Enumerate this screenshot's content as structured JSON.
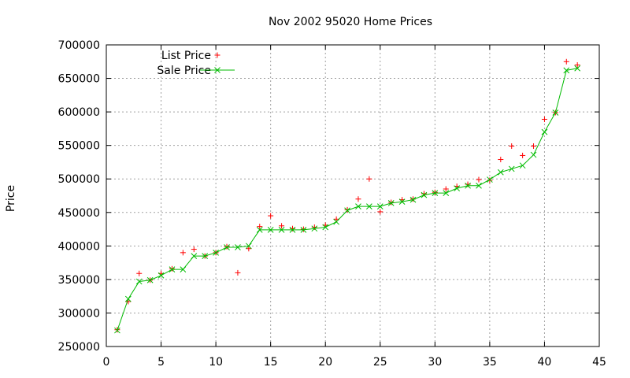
{
  "chart_data": {
    "type": "scatter",
    "title": "Nov 2002 95020 Home Prices",
    "xlabel": "",
    "ylabel": "Price",
    "xlim": [
      0,
      45
    ],
    "ylim": [
      250000,
      700000
    ],
    "x_ticks": [
      0,
      5,
      10,
      15,
      20,
      25,
      30,
      35,
      40,
      45
    ],
    "y_ticks": [
      250000,
      300000,
      350000,
      400000,
      450000,
      500000,
      550000,
      600000,
      650000,
      700000
    ],
    "grid": true,
    "legend_position": "top-left",
    "series": [
      {
        "name": "List Price",
        "style": "points",
        "marker": "plus",
        "color": "#ff0000",
        "x": [
          1,
          2,
          3,
          4,
          5,
          6,
          7,
          8,
          9,
          10,
          11,
          12,
          13,
          14,
          15,
          16,
          17,
          18,
          19,
          20,
          21,
          22,
          23,
          24,
          25,
          26,
          27,
          28,
          29,
          30,
          31,
          32,
          33,
          34,
          35,
          36,
          37,
          38,
          39,
          40,
          41,
          42,
          43
        ],
        "y": [
          275000,
          317000,
          359000,
          349000,
          359000,
          366000,
          390000,
          395000,
          385000,
          390000,
          399000,
          360000,
          396000,
          429000,
          445000,
          430000,
          426000,
          425000,
          428000,
          431000,
          440000,
          454000,
          470000,
          500000,
          451000,
          465000,
          469000,
          470000,
          478000,
          480000,
          485000,
          489000,
          492000,
          499000,
          498000,
          529000,
          549000,
          535000,
          549000,
          589000,
          599000,
          675000,
          670000
        ]
      },
      {
        "name": "Sale Price",
        "style": "linespoints",
        "marker": "x",
        "color": "#00bb00",
        "x": [
          1,
          2,
          3,
          4,
          5,
          6,
          7,
          8,
          9,
          10,
          11,
          12,
          13,
          14,
          15,
          16,
          17,
          18,
          19,
          20,
          21,
          22,
          23,
          24,
          25,
          26,
          27,
          28,
          29,
          30,
          31,
          32,
          33,
          34,
          35,
          36,
          37,
          38,
          39,
          40,
          41,
          42,
          43
        ],
        "y": [
          274000,
          321000,
          347000,
          349000,
          356000,
          365000,
          365000,
          385000,
          385000,
          390000,
          398000,
          398000,
          400000,
          424000,
          424000,
          424000,
          424000,
          424000,
          426000,
          428000,
          436000,
          453000,
          459000,
          459000,
          459000,
          464000,
          466000,
          469000,
          476000,
          479000,
          479000,
          486000,
          490000,
          490000,
          499000,
          510000,
          515000,
          520000,
          536000,
          570000,
          599000,
          662000,
          665000
        ]
      }
    ]
  }
}
